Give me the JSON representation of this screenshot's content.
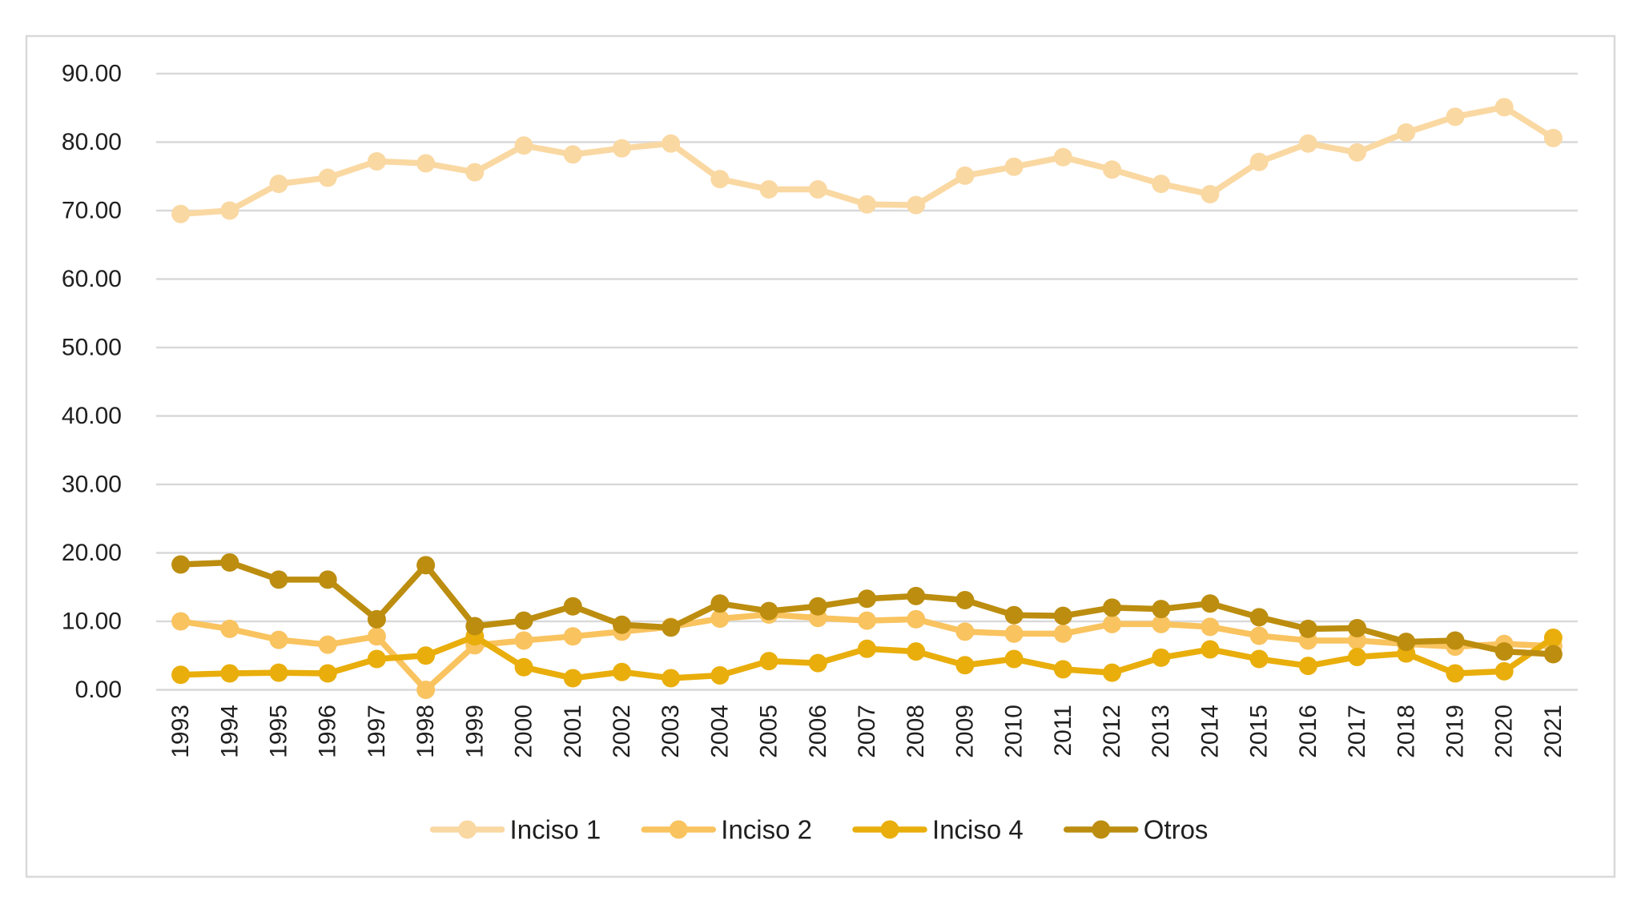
{
  "figure": {
    "background": "#FFFFFF",
    "border_color": "#D9D9D9",
    "gridline_color": "#D9D9D9",
    "axis_line_color": "#D0D0D0",
    "text_color": "#1F1F1F"
  },
  "chart_data": {
    "type": "line",
    "title": "",
    "xlabel": "",
    "ylabel": "",
    "grid": true,
    "legend_position": "bottom",
    "ylim": [
      0,
      90
    ],
    "ytick_step": 10,
    "yticks": [
      "0.00",
      "10.00",
      "20.00",
      "30.00",
      "40.00",
      "50.00",
      "60.00",
      "70.00",
      "80.00",
      "90.00"
    ],
    "x": [
      "1993",
      "1994",
      "1995",
      "1996",
      "1997",
      "1998",
      "1999",
      "2000",
      "2001",
      "2002",
      "2003",
      "2004",
      "2005",
      "2006",
      "2007",
      "2008",
      "2009",
      "2010",
      "2011",
      "2012",
      "2013",
      "2014",
      "2015",
      "2016",
      "2017",
      "2018",
      "2019",
      "2020",
      "2021"
    ],
    "series": [
      {
        "name": "Inciso 1",
        "color": "#FAD8A2",
        "values": [
          69.5,
          70.0,
          73.9,
          74.8,
          77.2,
          76.9,
          75.6,
          79.5,
          78.2,
          79.1,
          79.8,
          74.6,
          73.1,
          73.1,
          70.9,
          70.8,
          75.1,
          76.4,
          77.8,
          76.0,
          73.9,
          72.4,
          77.1,
          79.8,
          78.5,
          81.4,
          83.7,
          85.1,
          80.6
        ]
      },
      {
        "name": "Inciso 2",
        "color": "#F9C35F",
        "values": [
          10.0,
          8.9,
          7.3,
          6.6,
          7.8,
          0.0,
          6.5,
          7.2,
          7.8,
          8.5,
          9.2,
          10.4,
          11.0,
          10.5,
          10.1,
          10.3,
          8.5,
          8.2,
          8.2,
          9.6,
          9.6,
          9.2,
          7.9,
          7.2,
          7.2,
          6.7,
          6.3,
          6.7,
          6.4
        ]
      },
      {
        "name": "Inciso 4",
        "color": "#E9AE0B",
        "values": [
          2.2,
          2.4,
          2.5,
          2.4,
          4.5,
          5.0,
          7.8,
          3.3,
          1.7,
          2.6,
          1.7,
          2.1,
          4.2,
          3.9,
          6.0,
          5.6,
          3.6,
          4.5,
          3.0,
          2.5,
          4.7,
          5.9,
          4.5,
          3.5,
          4.8,
          5.3,
          2.4,
          2.7,
          7.6
        ]
      },
      {
        "name": "Otros",
        "color": "#BC8D0F",
        "values": [
          18.3,
          18.6,
          16.1,
          16.1,
          10.3,
          18.2,
          9.3,
          10.1,
          12.2,
          9.5,
          9.1,
          12.6,
          11.5,
          12.2,
          13.3,
          13.7,
          13.1,
          10.9,
          10.8,
          12.0,
          11.8,
          12.6,
          10.6,
          8.9,
          9.0,
          7.0,
          7.2,
          5.6,
          5.2
        ]
      }
    ]
  }
}
